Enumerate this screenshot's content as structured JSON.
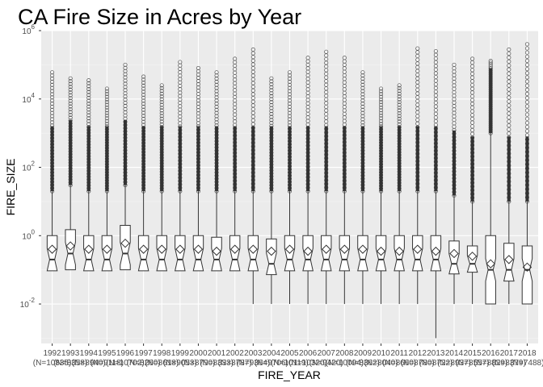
{
  "chart_data": {
    "type": "boxplot",
    "title": "CA Fire Size in Acres by Year",
    "xlabel": "FIRE_YEAR",
    "ylabel": "FIRE_SIZE",
    "y_scale": "log10",
    "ylim": [
      0.0007,
      1000000
    ],
    "y_ticks": [
      {
        "value": 0.01,
        "base": "10",
        "exp": "-2"
      },
      {
        "value": 1,
        "base": "10",
        "exp": "0"
      },
      {
        "value": 100,
        "base": "10",
        "exp": "2"
      },
      {
        "value": 10000,
        "base": "10",
        "exp": "4"
      },
      {
        "value": 1000000,
        "base": "10",
        "exp": "6"
      }
    ],
    "grid": true,
    "notched": true,
    "mean_marker": "diamond",
    "outlier_color": "#555555",
    "box_color": "#333333",
    "panel_bg": "#ebebeb",
    "categories": [
      {
        "year": "1992",
        "n_label": "(N=10835)",
        "min": 0.1,
        "q1": 0.1,
        "median": 0.2,
        "q3": 1.0,
        "mean": 0.4,
        "whisk_hi": 20,
        "max": 60000
      },
      {
        "year": "1993",
        "n_label": "(N=8358)",
        "min": 0.1,
        "q1": 0.1,
        "median": 0.3,
        "q3": 1.5,
        "mean": 0.5,
        "whisk_hi": 30,
        "max": 40000
      },
      {
        "year": "1994",
        "n_label": "(N=8940)",
        "min": 0.1,
        "q1": 0.1,
        "median": 0.2,
        "q3": 1.0,
        "mean": 0.4,
        "whisk_hi": 20,
        "max": 35000
      },
      {
        "year": "1995",
        "n_label": "(N=9118)",
        "min": 0.1,
        "q1": 0.1,
        "median": 0.2,
        "q3": 1.0,
        "mean": 0.4,
        "whisk_hi": 20,
        "max": 20000
      },
      {
        "year": "1996",
        "n_label": "(N=10702)",
        "min": 0.1,
        "q1": 0.1,
        "median": 0.3,
        "q3": 2.0,
        "mean": 0.6,
        "whisk_hi": 30,
        "max": 100000
      },
      {
        "year": "1997",
        "n_label": "(N=8260)",
        "min": 0.1,
        "q1": 0.1,
        "median": 0.2,
        "q3": 1.0,
        "mean": 0.4,
        "whisk_hi": 20,
        "max": 45000
      },
      {
        "year": "1998",
        "n_label": "(N=8618)",
        "min": 0.1,
        "q1": 0.1,
        "median": 0.2,
        "q3": 1.0,
        "mean": 0.4,
        "whisk_hi": 20,
        "max": 25000
      },
      {
        "year": "1999",
        "n_label": "(N=9053)",
        "min": 0.1,
        "q1": 0.1,
        "median": 0.2,
        "q3": 1.0,
        "mean": 0.4,
        "whisk_hi": 20,
        "max": 120000
      },
      {
        "year": "2000",
        "n_label": "(N=8790)",
        "min": 0.1,
        "q1": 0.1,
        "median": 0.2,
        "q3": 1.0,
        "mean": 0.4,
        "whisk_hi": 20,
        "max": 80000
      },
      {
        "year": "2001",
        "n_label": "(N=8333)",
        "min": 0.1,
        "q1": 0.1,
        "median": 0.2,
        "q3": 0.9,
        "mean": 0.35,
        "whisk_hi": 20,
        "max": 60000
      },
      {
        "year": "2002",
        "n_label": "(N=8787)",
        "min": 0.1,
        "q1": 0.1,
        "median": 0.2,
        "q3": 1.0,
        "mean": 0.4,
        "whisk_hi": 20,
        "max": 150000
      },
      {
        "year": "2003",
        "n_label": "(N=9364)",
        "min": 0.01,
        "q1": 0.1,
        "median": 0.2,
        "q3": 1.0,
        "mean": 0.4,
        "whisk_hi": 20,
        "max": 280000
      },
      {
        "year": "2004",
        "n_label": "(N=9706)",
        "min": 0.01,
        "q1": 0.1,
        "median": 0.15,
        "q3": 0.8,
        "mean": 0.35,
        "whisk_hi": 20,
        "max": 40000
      },
      {
        "year": "2005",
        "n_label": "(N=10119)",
        "min": 0.01,
        "q1": 0.1,
        "median": 0.2,
        "q3": 1.0,
        "mean": 0.4,
        "whisk_hi": 20,
        "max": 60000
      },
      {
        "year": "2006",
        "n_label": "(N=10320)",
        "min": 0.01,
        "q1": 0.1,
        "median": 0.2,
        "q3": 1.0,
        "mean": 0.35,
        "whisk_hi": 20,
        "max": 160000
      },
      {
        "year": "2007",
        "n_label": "(N=9420)",
        "min": 0.01,
        "q1": 0.1,
        "median": 0.2,
        "q3": 1.0,
        "mean": 0.4,
        "whisk_hi": 20,
        "max": 240000
      },
      {
        "year": "2008",
        "n_label": "(N=10094)",
        "min": 0.01,
        "q1": 0.1,
        "median": 0.2,
        "q3": 1.0,
        "mean": 0.4,
        "whisk_hi": 20,
        "max": 160000
      },
      {
        "year": "2009",
        "n_label": "(N=8362)",
        "min": 0.01,
        "q1": 0.1,
        "median": 0.2,
        "q3": 1.0,
        "mean": 0.4,
        "whisk_hi": 20,
        "max": 60000
      },
      {
        "year": "2010",
        "n_label": "(N=8040)",
        "min": 0.01,
        "q1": 0.1,
        "median": 0.2,
        "q3": 1.0,
        "mean": 0.35,
        "whisk_hi": 20,
        "max": 20000
      },
      {
        "year": "2011",
        "n_label": "(N=8660)",
        "min": 0.01,
        "q1": 0.1,
        "median": 0.2,
        "q3": 1.0,
        "mean": 0.35,
        "whisk_hi": 20,
        "max": 25000
      },
      {
        "year": "2012",
        "n_label": "(N=8780)",
        "min": 0.01,
        "q1": 0.1,
        "median": 0.2,
        "q3": 1.0,
        "mean": 0.4,
        "whisk_hi": 20,
        "max": 300000
      },
      {
        "year": "2013",
        "n_label": "(N=8722)",
        "min": 0.001,
        "q1": 0.1,
        "median": 0.2,
        "q3": 1.0,
        "mean": 0.35,
        "whisk_hi": 20,
        "max": 250000
      },
      {
        "year": "2014",
        "n_label": "(N=8937)",
        "min": 0.01,
        "q1": 0.1,
        "median": 0.15,
        "q3": 0.7,
        "mean": 0.3,
        "whisk_hi": 15,
        "max": 100000
      },
      {
        "year": "2015",
        "n_label": "(N=8557)",
        "min": 0.01,
        "q1": 0.1,
        "median": 0.15,
        "q3": 0.5,
        "mean": 0.25,
        "whisk_hi": 10,
        "max": 150000
      },
      {
        "year": "2016",
        "n_label": "(N=8829)",
        "min": 0.01,
        "q1": 0.01,
        "median": 0.1,
        "q3": 1.0,
        "mean": 0.15,
        "whisk_hi": 1000,
        "max": 130000
      },
      {
        "year": "2017",
        "n_label": "(N=8379)",
        "min": 0.01,
        "q1": 0.05,
        "median": 0.1,
        "q3": 0.6,
        "mean": 0.2,
        "whisk_hi": 10,
        "max": 280000
      },
      {
        "year": "2018",
        "n_label": "(N=7488)",
        "min": 0.01,
        "q1": 0.01,
        "median": 0.1,
        "q3": 0.5,
        "mean": 0.12,
        "whisk_hi": 10,
        "max": 400000
      }
    ]
  }
}
